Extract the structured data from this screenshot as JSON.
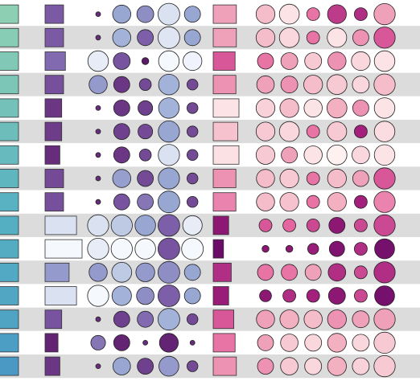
{
  "chart_data": {
    "type": "heatmap",
    "title": "",
    "rows": 16,
    "row_band_colors": {
      "even": "#ffffff",
      "odd": "#dcdcdc"
    },
    "col1": {
      "kind": "bar",
      "ramp": [
        "#4a98c4",
        "#55b0c2",
        "#8ccfb3"
      ],
      "bars": [
        {
          "w": 1.0,
          "c": 1.0
        },
        {
          "w": 1.0,
          "c": 0.95
        },
        {
          "w": 1.0,
          "c": 0.9
        },
        {
          "w": 1.0,
          "c": 0.85
        },
        {
          "w": 1.0,
          "c": 0.78
        },
        {
          "w": 1.0,
          "c": 0.72
        },
        {
          "w": 1.0,
          "c": 0.66
        },
        {
          "w": 1.0,
          "c": 0.6
        },
        {
          "w": 1.0,
          "c": 0.54
        },
        {
          "w": 1.0,
          "c": 0.48
        },
        {
          "w": 1.0,
          "c": 0.42
        },
        {
          "w": 1.0,
          "c": 0.36
        },
        {
          "w": 1.0,
          "c": 0.3
        },
        {
          "w": 1.0,
          "c": 0.22
        },
        {
          "w": 1.0,
          "c": 0.12
        },
        {
          "w": 1.0,
          "c": 0.0
        }
      ]
    },
    "col2": {
      "kind": "bar",
      "ramp": [
        "#f5f8fd",
        "#9aaad4",
        "#7b5aa6",
        "#5e1a6a"
      ],
      "bars": [
        {
          "w": 0.5,
          "c": 0.67
        },
        {
          "w": 0.5,
          "c": 0.67
        },
        {
          "w": 0.55,
          "c": 0.6
        },
        {
          "w": 0.5,
          "c": 0.72
        },
        {
          "w": 0.45,
          "c": 0.85
        },
        {
          "w": 0.45,
          "c": 0.82
        },
        {
          "w": 0.4,
          "c": 0.9
        },
        {
          "w": 0.5,
          "c": 0.75
        },
        {
          "w": 0.5,
          "c": 0.72
        },
        {
          "w": 0.85,
          "c": 0.1
        },
        {
          "w": 1.0,
          "c": 0.0
        },
        {
          "w": 0.65,
          "c": 0.4
        },
        {
          "w": 0.85,
          "c": 0.1
        },
        {
          "w": 0.45,
          "c": 0.7
        },
        {
          "w": 0.35,
          "c": 0.95
        },
        {
          "w": 0.4,
          "c": 0.85
        }
      ]
    },
    "bubbles1": {
      "kind": "bubble",
      "ramp": [
        "#f5f8fd",
        "#9aaad4",
        "#7b5aa6",
        "#5e1a6a"
      ],
      "columns": 5,
      "cells": [
        [
          {
            "s": 0.05,
            "c": 0.9
          },
          {
            "s": 0.7,
            "c": 0.35
          },
          {
            "s": 0.6,
            "c": 0.45
          },
          {
            "s": 1.0,
            "c": 0.1
          },
          {
            "s": 0.55,
            "c": 0.35
          }
        ],
        [
          {
            "s": 0.05,
            "c": 0.9
          },
          {
            "s": 0.7,
            "c": 0.3
          },
          {
            "s": 0.55,
            "c": 0.65
          },
          {
            "s": 1.0,
            "c": 0.08
          },
          {
            "s": 0.55,
            "c": 0.35
          }
        ],
        [
          {
            "s": 0.9,
            "c": 0.05
          },
          {
            "s": 0.6,
            "c": 0.7
          },
          {
            "s": 0.1,
            "c": 1.0
          },
          {
            "s": 0.9,
            "c": 0.0
          },
          {
            "s": 0.75,
            "c": 0.02
          }
        ],
        [
          {
            "s": 0.7,
            "c": 0.4
          },
          {
            "s": 0.55,
            "c": 0.85
          },
          {
            "s": 0.3,
            "c": 0.75
          },
          {
            "s": 0.9,
            "c": 0.3
          },
          {
            "s": 0.25,
            "c": 0.75
          }
        ],
        [
          {
            "s": 0.05,
            "c": 0.9
          },
          {
            "s": 0.55,
            "c": 0.85
          },
          {
            "s": 0.45,
            "c": 0.8
          },
          {
            "s": 0.9,
            "c": 0.3
          },
          {
            "s": 0.25,
            "c": 0.75
          }
        ],
        [
          {
            "s": 0.05,
            "c": 0.9
          },
          {
            "s": 0.55,
            "c": 0.8
          },
          {
            "s": 0.45,
            "c": 0.75
          },
          {
            "s": 0.95,
            "c": 0.35
          },
          {
            "s": 0.25,
            "c": 0.75
          }
        ],
        [
          {
            "s": 0.05,
            "c": 0.9
          },
          {
            "s": 0.55,
            "c": 0.85
          },
          {
            "s": 0.3,
            "c": 0.75
          },
          {
            "s": 0.95,
            "c": 0.1
          },
          {
            "s": 0.25,
            "c": 0.75
          }
        ],
        [
          {
            "s": 0.05,
            "c": 0.9
          },
          {
            "s": 0.7,
            "c": 0.38
          },
          {
            "s": 0.55,
            "c": 0.75
          },
          {
            "s": 0.95,
            "c": 0.35
          },
          {
            "s": 0.25,
            "c": 0.75
          }
        ],
        [
          {
            "s": 0.05,
            "c": 0.9
          },
          {
            "s": 0.55,
            "c": 0.7
          },
          {
            "s": 0.55,
            "c": 0.55
          },
          {
            "s": 1.0,
            "c": 0.35
          },
          {
            "s": 0.25,
            "c": 0.75
          }
        ],
        [
          {
            "s": 0.95,
            "c": 0.1
          },
          {
            "s": 0.95,
            "c": 0.2
          },
          {
            "s": 0.9,
            "c": 0.35
          },
          {
            "s": 1.0,
            "c": 0.65
          },
          {
            "s": 0.8,
            "c": 0.05
          }
        ],
        [
          {
            "s": 0.95,
            "c": 0.05
          },
          {
            "s": 0.95,
            "c": 0.0
          },
          {
            "s": 0.9,
            "c": 0.0
          },
          {
            "s": 1.0,
            "c": 0.7
          },
          {
            "s": 1.0,
            "c": 0.0
          }
        ],
        [
          {
            "s": 0.7,
            "c": 0.4
          },
          {
            "s": 0.85,
            "c": 0.2
          },
          {
            "s": 0.75,
            "c": 0.4
          },
          {
            "s": 1.0,
            "c": 0.45
          },
          {
            "s": 0.55,
            "c": 0.35
          }
        ],
        [
          {
            "s": 0.95,
            "c": 0.0
          },
          {
            "s": 0.8,
            "c": 0.3
          },
          {
            "s": 0.65,
            "c": 0.45
          },
          {
            "s": 1.0,
            "c": 0.65
          },
          {
            "s": 0.55,
            "c": 0.35
          }
        ],
        [
          {
            "s": 0.05,
            "c": 0.9
          },
          {
            "s": 0.55,
            "c": 0.8
          },
          {
            "s": 0.55,
            "c": 0.6
          },
          {
            "s": 1.0,
            "c": 0.3
          },
          {
            "s": 0.25,
            "c": 0.75
          }
        ],
        [
          {
            "s": 0.45,
            "c": 0.55
          },
          {
            "s": 0.55,
            "c": 0.95
          },
          {
            "s": 0.05,
            "c": 0.9
          },
          {
            "s": 0.75,
            "c": 0.95
          },
          {
            "s": 0.05,
            "c": 0.9
          }
        ],
        [
          {
            "s": 0.05,
            "c": 0.9
          },
          {
            "s": 0.65,
            "c": 0.35
          },
          {
            "s": 0.55,
            "c": 0.8
          },
          {
            "s": 0.85,
            "c": 0.4
          },
          {
            "s": 0.25,
            "c": 0.75
          }
        ]
      ]
    },
    "col3": {
      "kind": "bar",
      "ramp": [
        "#fff1f0",
        "#f2b0c0",
        "#e565a0",
        "#a3207c",
        "#6b0c69"
      ],
      "bars": [
        {
          "w": 0.9,
          "c": 0.3
        },
        {
          "w": 0.9,
          "c": 0.3
        },
        {
          "w": 0.85,
          "c": 0.55
        },
        {
          "w": 0.88,
          "c": 0.35
        },
        {
          "w": 1.0,
          "c": 0.05
        },
        {
          "w": 0.95,
          "c": 0.18
        },
        {
          "w": 1.0,
          "c": 0.06
        },
        {
          "w": 0.88,
          "c": 0.35
        },
        {
          "w": 0.88,
          "c": 0.4
        },
        {
          "w": 0.6,
          "c": 0.85
        },
        {
          "w": 0.4,
          "c": 1.0
        },
        {
          "w": 0.7,
          "c": 0.7
        },
        {
          "w": 0.6,
          "c": 0.8
        },
        {
          "w": 0.8,
          "c": 0.55
        },
        {
          "w": 0.85,
          "c": 0.45
        },
        {
          "w": 0.9,
          "c": 0.35
        }
      ]
    },
    "bubbles2": {
      "kind": "bubble",
      "ramp": [
        "#fff1f0",
        "#f2b0c0",
        "#e565a0",
        "#a3207c",
        "#6b0c69"
      ],
      "columns": 6,
      "cells": [
        [
          {
            "s": 0.75,
            "c": 0.2
          },
          {
            "s": 0.85,
            "c": 0.05
          },
          {
            "s": 0.35,
            "c": 0.45
          },
          {
            "s": 0.75,
            "c": 0.65
          },
          {
            "s": 0.35,
            "c": 0.7
          },
          {
            "s": 0.95,
            "c": 0.3
          }
        ],
        [
          {
            "s": 0.75,
            "c": 0.2
          },
          {
            "s": 0.85,
            "c": 0.1
          },
          {
            "s": 0.35,
            "c": 0.45
          },
          {
            "s": 0.8,
            "c": 0.05
          },
          {
            "s": 0.55,
            "c": 0.35
          },
          {
            "s": 0.95,
            "c": 0.55
          }
        ],
        [
          {
            "s": 0.55,
            "c": 0.45
          },
          {
            "s": 0.6,
            "c": 0.3
          },
          {
            "s": 0.6,
            "c": 0.15
          },
          {
            "s": 0.7,
            "c": 0.35
          },
          {
            "s": 0.75,
            "c": 0.1
          },
          {
            "s": 0.9,
            "c": 0.05
          }
        ],
        [
          {
            "s": 0.65,
            "c": 0.3
          },
          {
            "s": 0.6,
            "c": 0.35
          },
          {
            "s": 0.75,
            "c": 0.2
          },
          {
            "s": 0.85,
            "c": 0.15
          },
          {
            "s": 0.6,
            "c": 0.1
          },
          {
            "s": 0.95,
            "c": 0.2
          }
        ],
        [
          {
            "s": 0.75,
            "c": 0.12
          },
          {
            "s": 0.75,
            "c": 0.2
          },
          {
            "s": 0.7,
            "c": 0.05
          },
          {
            "s": 0.85,
            "c": 0.25
          },
          {
            "s": 0.55,
            "c": 0.35
          },
          {
            "s": 0.9,
            "c": 0.05
          }
        ],
        [
          {
            "s": 0.75,
            "c": 0.15
          },
          {
            "s": 0.85,
            "c": 0.1
          },
          {
            "s": 0.35,
            "c": 0.45
          },
          {
            "s": 0.8,
            "c": 0.15
          },
          {
            "s": 0.35,
            "c": 0.75
          },
          {
            "s": 0.9,
            "c": 0.08
          }
        ],
        [
          {
            "s": 0.75,
            "c": 0.15
          },
          {
            "s": 0.55,
            "c": 0.3
          },
          {
            "s": 0.7,
            "c": 0.05
          },
          {
            "s": 0.85,
            "c": 0.0
          },
          {
            "s": 0.65,
            "c": 0.1
          },
          {
            "s": 0.9,
            "c": 0.05
          }
        ],
        [
          {
            "s": 0.7,
            "c": 0.2
          },
          {
            "s": 0.75,
            "c": 0.15
          },
          {
            "s": 0.35,
            "c": 0.45
          },
          {
            "s": 0.75,
            "c": 0.2
          },
          {
            "s": 0.55,
            "c": 0.3
          },
          {
            "s": 0.95,
            "c": 0.55
          }
        ],
        [
          {
            "s": 0.7,
            "c": 0.2
          },
          {
            "s": 0.75,
            "c": 0.18
          },
          {
            "s": 0.35,
            "c": 0.45
          },
          {
            "s": 0.75,
            "c": 0.25
          },
          {
            "s": 0.35,
            "c": 0.75
          },
          {
            "s": 0.95,
            "c": 0.4
          }
        ],
        [
          {
            "s": 0.35,
            "c": 0.55
          },
          {
            "s": 0.35,
            "c": 0.5
          },
          {
            "s": 0.35,
            "c": 0.6
          },
          {
            "s": 0.55,
            "c": 0.85
          },
          {
            "s": 0.35,
            "c": 0.6
          },
          {
            "s": 0.95,
            "c": 0.6
          }
        ],
        [
          {
            "s": 0.1,
            "c": 0.85
          },
          {
            "s": 0.1,
            "c": 0.85
          },
          {
            "s": 0.25,
            "c": 0.8
          },
          {
            "s": 0.5,
            "c": 0.9
          },
          {
            "s": 0.35,
            "c": 0.7
          },
          {
            "s": 0.85,
            "c": 0.95
          }
        ],
        [
          {
            "s": 0.55,
            "c": 0.45
          },
          {
            "s": 0.55,
            "c": 0.45
          },
          {
            "s": 0.55,
            "c": 0.3
          },
          {
            "s": 0.65,
            "c": 0.7
          },
          {
            "s": 0.35,
            "c": 0.6
          },
          {
            "s": 0.95,
            "c": 0.7
          }
        ],
        [
          {
            "s": 0.3,
            "c": 0.85
          },
          {
            "s": 0.35,
            "c": 0.7
          },
          {
            "s": 0.35,
            "c": 0.75
          },
          {
            "s": 0.6,
            "c": 0.85
          },
          {
            "s": 0.35,
            "c": 0.6
          },
          {
            "s": 0.85,
            "c": 0.95
          }
        ],
        [
          {
            "s": 0.7,
            "c": 0.3
          },
          {
            "s": 0.75,
            "c": 0.25
          },
          {
            "s": 0.7,
            "c": 0.2
          },
          {
            "s": 0.75,
            "c": 0.35
          },
          {
            "s": 0.6,
            "c": 0.3
          },
          {
            "s": 0.95,
            "c": 0.3
          }
        ],
        [
          {
            "s": 0.55,
            "c": 0.3
          },
          {
            "s": 0.65,
            "c": 0.15
          },
          {
            "s": 0.6,
            "c": 0.1
          },
          {
            "s": 0.75,
            "c": 0.25
          },
          {
            "s": 0.6,
            "c": 0.1
          },
          {
            "s": 0.95,
            "c": 0.15
          }
        ],
        [
          {
            "s": 0.55,
            "c": 0.35
          },
          {
            "s": 0.65,
            "c": 0.15
          },
          {
            "s": 0.6,
            "c": 0.1
          },
          {
            "s": 0.75,
            "c": 0.25
          },
          {
            "s": 0.6,
            "c": 0.12
          },
          {
            "s": 0.95,
            "c": 0.15
          }
        ]
      ]
    }
  }
}
